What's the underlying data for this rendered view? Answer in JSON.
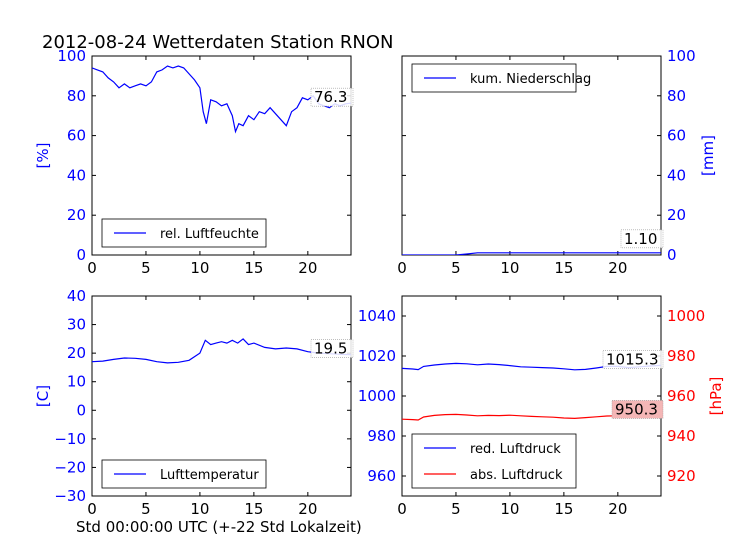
{
  "title": "2012-08-24 Wetterdaten Station RNON",
  "xlabel": "Std 00:00:00 UTC (+-22 Std Lokalzeit)",
  "colors": {
    "blue": "#0000ff",
    "red": "#ff0000",
    "label_bg": "#ffffff",
    "abs_label_bg": "#f4b6b6"
  },
  "chart_data": [
    {
      "type": "line",
      "ylabel": "[%]",
      "ylim": [
        0,
        100
      ],
      "xlim": [
        0,
        24
      ],
      "x_ticks": [
        "0",
        "5",
        "10",
        "15",
        "20"
      ],
      "y_ticks": [
        "0",
        "20",
        "40",
        "60",
        "80",
        "100"
      ],
      "series": [
        {
          "name": "rel. Luftfeuchte",
          "color": "#0000ff",
          "x": [
            0,
            0.5,
            1,
            1.5,
            2,
            2.5,
            3,
            3.5,
            4,
            4.5,
            5,
            5.5,
            6,
            6.5,
            7,
            7.5,
            8,
            8.5,
            9,
            9.5,
            10,
            10.3,
            10.6,
            11,
            11.5,
            12,
            12.5,
            13,
            13.3,
            13.6,
            14,
            14.5,
            15,
            15.5,
            16,
            16.5,
            17,
            17.5,
            18,
            18.5,
            19,
            19.5,
            20,
            20.5,
            21,
            21.5,
            22,
            22.5,
            23,
            23.5,
            24
          ],
          "y": [
            94,
            93,
            92,
            89,
            87,
            84,
            86,
            84,
            85,
            86,
            85,
            87,
            92,
            93,
            95,
            94,
            95,
            94,
            91,
            88,
            84,
            72,
            66,
            78,
            77,
            75,
            76,
            70,
            62,
            66,
            65,
            70,
            68,
            72,
            71,
            74,
            71,
            68,
            65,
            72,
            74,
            79,
            78,
            80,
            76,
            75,
            74,
            76,
            75,
            76,
            76.3
          ]
        }
      ],
      "end_label": "76.3",
      "legend": "bottom"
    },
    {
      "type": "line",
      "ylabel": "[mm]",
      "ylim": [
        0,
        100
      ],
      "xlim": [
        0,
        24
      ],
      "x_ticks": [
        "0",
        "5",
        "10",
        "15",
        "20"
      ],
      "y_ticks": [
        "0",
        "20",
        "40",
        "60",
        "80",
        "100"
      ],
      "series": [
        {
          "name": "kum. Niederschlag",
          "color": "#0000ff",
          "x": [
            0,
            5,
            6,
            7,
            8,
            24
          ],
          "y": [
            0,
            0,
            0.5,
            1.1,
            1.1,
            1.1
          ]
        }
      ],
      "end_label": "1.10",
      "legend": "top"
    },
    {
      "type": "line",
      "ylabel": "[C]",
      "ylim": [
        -30,
        40
      ],
      "xlim": [
        0,
        24
      ],
      "x_ticks": [
        "0",
        "5",
        "10",
        "15",
        "20"
      ],
      "y_ticks": [
        "−30",
        "−20",
        "−10",
        "0",
        "10",
        "20",
        "30",
        "40"
      ],
      "series": [
        {
          "name": "Lufttemperatur",
          "color": "#0000ff",
          "x": [
            0,
            1,
            2,
            3,
            4,
            5,
            6,
            7,
            8,
            9,
            10,
            10.5,
            11,
            11.5,
            12,
            12.5,
            13,
            13.5,
            14,
            14.5,
            15,
            16,
            17,
            18,
            19,
            20,
            21,
            22,
            23,
            24
          ],
          "y": [
            17,
            17.2,
            17.8,
            18.3,
            18.2,
            17.8,
            17,
            16.6,
            16.8,
            17.5,
            20,
            24.5,
            23,
            23.5,
            24,
            23.5,
            24.5,
            23.5,
            25,
            23,
            23.5,
            22,
            21.5,
            21.8,
            21.5,
            20.5,
            20,
            19.8,
            19.6,
            19.5
          ]
        }
      ],
      "end_label": "19.5",
      "legend": "bottom"
    },
    {
      "type": "line",
      "ylabel": "[hPa]",
      "ylim": [
        950,
        1050
      ],
      "ylim_right": [
        910,
        1010
      ],
      "xlim": [
        0,
        24
      ],
      "x_ticks": [
        "0",
        "5",
        "10",
        "15",
        "20"
      ],
      "y_ticks": [
        "960",
        "980",
        "1000",
        "1020",
        "1040"
      ],
      "y_ticks_right": [
        "920",
        "940",
        "960",
        "980",
        "1000"
      ],
      "series": [
        {
          "name": "red. Luftdruck",
          "color": "#0000ff",
          "axis": "left",
          "x": [
            0,
            1,
            1.5,
            2,
            3,
            4,
            5,
            6,
            7,
            8,
            9,
            10,
            11,
            12,
            13,
            14,
            15,
            16,
            17,
            18,
            19,
            20,
            21,
            22,
            23,
            24
          ],
          "y": [
            1013.8,
            1013.5,
            1013.2,
            1014.8,
            1015.5,
            1016,
            1016.3,
            1016.1,
            1015.6,
            1016,
            1015.7,
            1015.2,
            1014.6,
            1014.4,
            1014.2,
            1014,
            1013.6,
            1013.1,
            1013.3,
            1014,
            1014.8,
            1014.8,
            1014.2,
            1014.6,
            1015,
            1015.3
          ]
        },
        {
          "name": "abs. Luftdruck",
          "color": "#ff0000",
          "axis": "right",
          "x": [
            0,
            1,
            1.5,
            2,
            3,
            4,
            5,
            6,
            7,
            8,
            9,
            10,
            11,
            12,
            13,
            14,
            15,
            16,
            17,
            18,
            19,
            20,
            21,
            22,
            23,
            24
          ],
          "y": [
            948.4,
            948.2,
            948,
            949.5,
            950.3,
            950.7,
            950.8,
            950.5,
            950.1,
            950.3,
            950.2,
            950.4,
            950.1,
            949.8,
            949.6,
            949.4,
            949.0,
            948.8,
            949.2,
            949.6,
            950.0,
            950.1,
            949.7,
            949.9,
            950.2,
            950.3
          ]
        }
      ],
      "end_labels": [
        "1015.3",
        "950.3"
      ],
      "legend": "bottom"
    }
  ]
}
